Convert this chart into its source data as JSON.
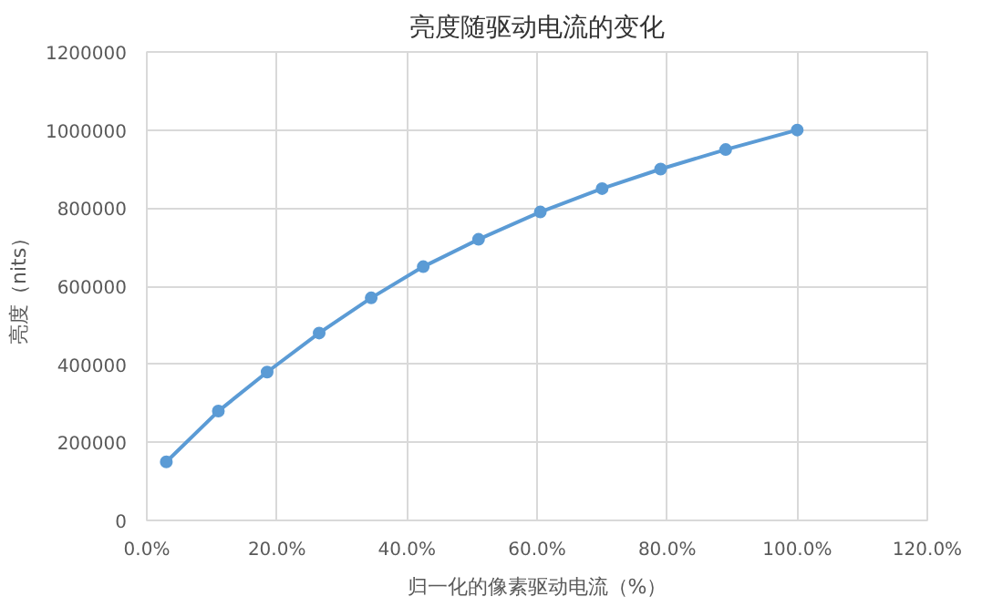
{
  "chart_data": {
    "type": "line",
    "title": "亮度随驱动电流的变化",
    "xlabel": "归一化的像素驱动电流（%）",
    "ylabel": "亮度（nits）",
    "x": [
      0.03,
      0.11,
      0.185,
      0.265,
      0.345,
      0.425,
      0.51,
      0.605,
      0.7,
      0.79,
      0.89,
      1.0
    ],
    "series": [
      {
        "color": "#5b9bd5",
        "values": [
          150000,
          280000,
          380000,
          480000,
          570000,
          650000,
          720000,
          790000,
          850000,
          900000,
          950000,
          1000000
        ]
      }
    ],
    "xlim": [
      0,
      1.2
    ],
    "xticks": [
      {
        "value": 0,
        "label": "0.0%"
      },
      {
        "value": 0.2,
        "label": "20.0%"
      },
      {
        "value": 0.4,
        "label": "40.0%"
      },
      {
        "value": 0.6,
        "label": "60.0%"
      },
      {
        "value": 0.8,
        "label": "80.0%"
      },
      {
        "value": 1.0,
        "label": "100.0%"
      },
      {
        "value": 1.2,
        "label": "120.0%"
      }
    ],
    "ylim": [
      0,
      1200000
    ],
    "yticks": [
      0,
      200000,
      400000,
      600000,
      800000,
      1000000,
      1200000
    ],
    "grid": true,
    "marker": "circle",
    "line_style": "solid"
  }
}
